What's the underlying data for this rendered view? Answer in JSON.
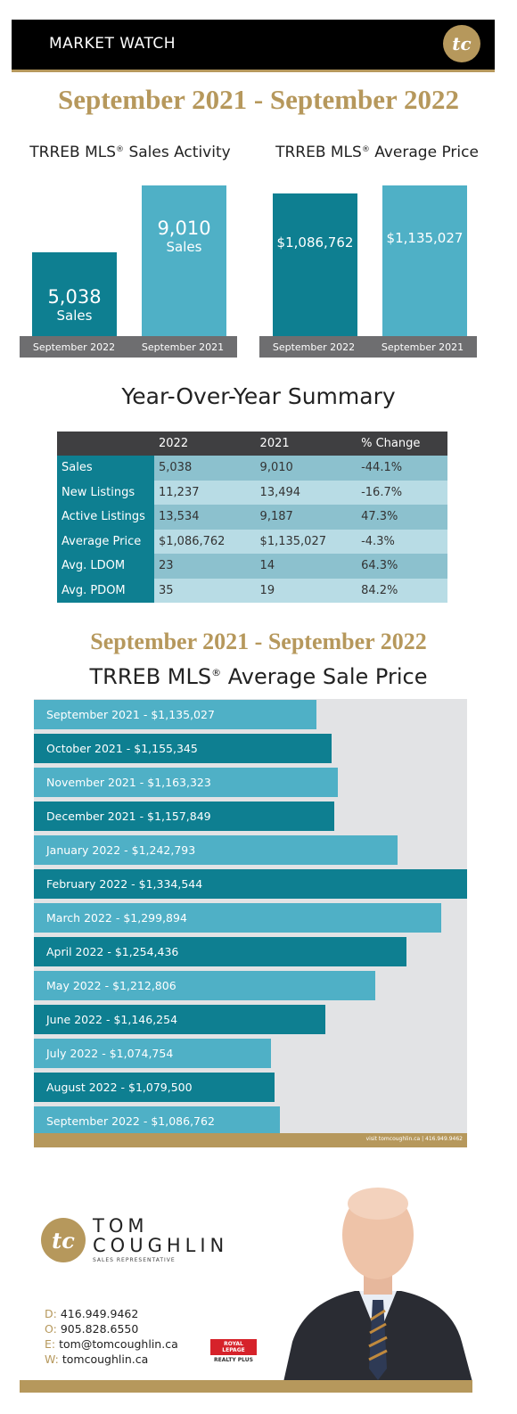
{
  "header": {
    "title": "MARKET WATCH",
    "logo_text": "tc"
  },
  "period_title": "September 2021 - September 2022",
  "sales_activity": {
    "title": "TRREB MLS",
    "reg": "®",
    "title_suffix": " Sales Activity",
    "unit": "Sales",
    "bars": [
      {
        "label": "September 2022",
        "value": 5038,
        "display": "5,038",
        "color": "#0e7f91"
      },
      {
        "label": "September 2021",
        "value": 9010,
        "display": "9,010",
        "color": "#4fb0c6"
      }
    ]
  },
  "average_price": {
    "title": "TRREB MLS",
    "reg": "®",
    "title_suffix": " Average Price",
    "bars": [
      {
        "label": "September 2022",
        "value": 1086762,
        "display": "$1,086,762",
        "color": "#0e7f91"
      },
      {
        "label": "September 2021",
        "value": 1135027,
        "display": "$1,135,027",
        "color": "#4fb0c6"
      }
    ]
  },
  "summary": {
    "title": "Year-Over-Year Summary",
    "headers": [
      "",
      "2022",
      "2021",
      "% Change"
    ],
    "rows": [
      [
        "Sales",
        "5,038",
        "9,010",
        "-44.1%"
      ],
      [
        "New Listings",
        "11,237",
        "13,494",
        "-16.7%"
      ],
      [
        "Active Listings",
        "13,534",
        "9,187",
        "47.3%"
      ],
      [
        "Average Price",
        "$1,086,762",
        "$1,135,027",
        "-4.3%"
      ],
      [
        "Avg. LDOM",
        "23",
        "14",
        "64.3%"
      ],
      [
        "Avg. PDOM",
        "35",
        "19",
        "84.2%"
      ]
    ]
  },
  "monthly": {
    "title": "TRREB MLS",
    "reg": "®",
    "title_suffix": " Average Sale Price",
    "footer_note": "visit tomcoughlin.ca | 416.949.9462"
  },
  "chart_data": {
    "type": "bar",
    "orientation": "horizontal",
    "categories": [
      "September 2021",
      "October 2021",
      "November 2021",
      "December 2021",
      "January 2022",
      "February 2022",
      "March 2022",
      "April 2022",
      "May 2022",
      "June 2022",
      "July 2022",
      "August 2022",
      "September 2022"
    ],
    "values": [
      1135027,
      1155345,
      1163323,
      1157849,
      1242793,
      1334544,
      1299894,
      1254436,
      1212806,
      1146254,
      1074754,
      1079500,
      1086762
    ],
    "labels": [
      "September 2021 - $1,135,027",
      "October 2021 - $1,155,345",
      "November 2021 - $1,163,323",
      "December 2021 - $1,157,849",
      "January 2022 - $1,242,793",
      "February 2022 - $1,334,544",
      "March 2022 - $1,299,894",
      "April 2022 - $1,254,436",
      "May 2022 - $1,212,806",
      "June 2022 - $1,146,254",
      "July 2022 - $1,074,754",
      "August 2022 - $1,079,500",
      "September 2022 - $1,086,762"
    ],
    "colors": [
      "#4fb0c6",
      "#0e7f91"
    ],
    "xlim": [
      760000,
      1334544
    ]
  },
  "agent": {
    "first": "TOM",
    "last": "COUGHLIN",
    "role": "SALES REPRESENTATIVE",
    "contacts": [
      {
        "k": "D",
        "v": "416.949.9462"
      },
      {
        "k": "O",
        "v": "905.828.6550"
      },
      {
        "k": "E",
        "v": "tom@tomcoughlin.ca"
      },
      {
        "k": "W",
        "v": "tomcoughlin.ca"
      }
    ],
    "brokerage_line1": "ROYAL LEPAGE",
    "brokerage_line2": "REALTY PLUS"
  }
}
